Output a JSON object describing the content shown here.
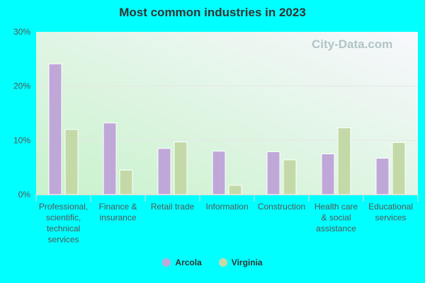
{
  "chart_data": {
    "type": "bar",
    "title": "Most common industries in 2023",
    "categories": [
      [
        "Professional,",
        "scientific,",
        "technical",
        "services"
      ],
      [
        "Finance &",
        "insurance"
      ],
      [
        "Retail trade"
      ],
      [
        "Information"
      ],
      [
        "Construction"
      ],
      [
        "Health care",
        "& social",
        "assistance"
      ],
      [
        "Educational",
        "services"
      ]
    ],
    "series": [
      {
        "name": "Arcola",
        "color": "#bfa8d8",
        "values": [
          24.1,
          13.2,
          8.5,
          8.0,
          7.9,
          7.5,
          6.7
        ]
      },
      {
        "name": "Virginia",
        "color": "#c4d9a8",
        "values": [
          12.0,
          4.5,
          9.7,
          1.7,
          6.4,
          12.3,
          9.6
        ]
      }
    ],
    "ylim": [
      0,
      30
    ],
    "yticks": [
      0,
      10,
      20,
      30
    ],
    "ytick_format": "%",
    "grid": true,
    "legend": "bottom",
    "watermark": "City-Data.com"
  }
}
